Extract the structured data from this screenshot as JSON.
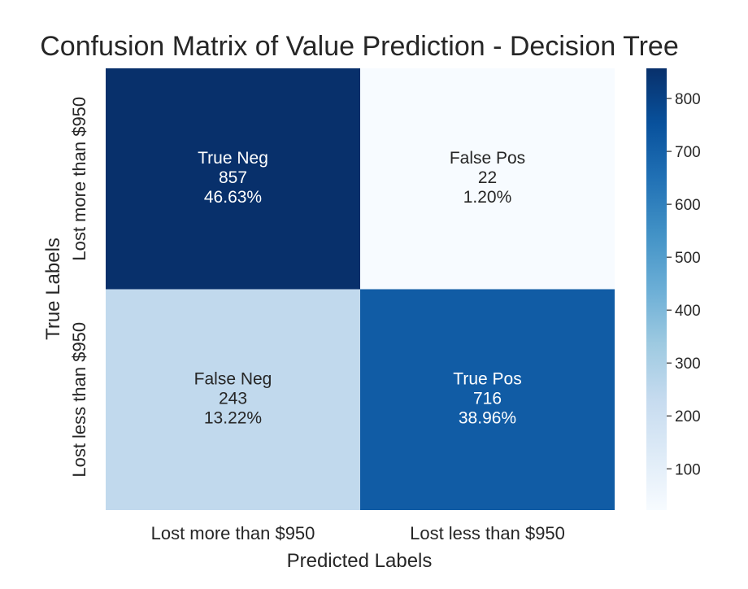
{
  "chart_data": {
    "type": "heatmap",
    "title": "Confusion Matrix of Value Prediction - Decision Tree",
    "xlabel": "Predicted Labels",
    "ylabel": "True Labels",
    "x_categories": [
      "Lost more than $950",
      "Lost less than $950"
    ],
    "y_categories": [
      "Lost more than $950",
      "Lost less than $950"
    ],
    "cells": [
      [
        {
          "name": "True Neg",
          "count": "857",
          "percent": "46.63%",
          "value": 857
        },
        {
          "name": "False Pos",
          "count": "22",
          "percent": "1.20%",
          "value": 22
        }
      ],
      [
        {
          "name": "False Neg",
          "count": "243",
          "percent": "13.22%",
          "value": 243
        },
        {
          "name": "True Pos",
          "count": "716",
          "percent": "38.96%",
          "value": 716
        }
      ]
    ],
    "colorbar": {
      "colormap": "Blues",
      "vmin": 22,
      "vmax": 857,
      "ticks": [
        100,
        200,
        300,
        400,
        500,
        600,
        700,
        800
      ]
    },
    "grid": false
  }
}
